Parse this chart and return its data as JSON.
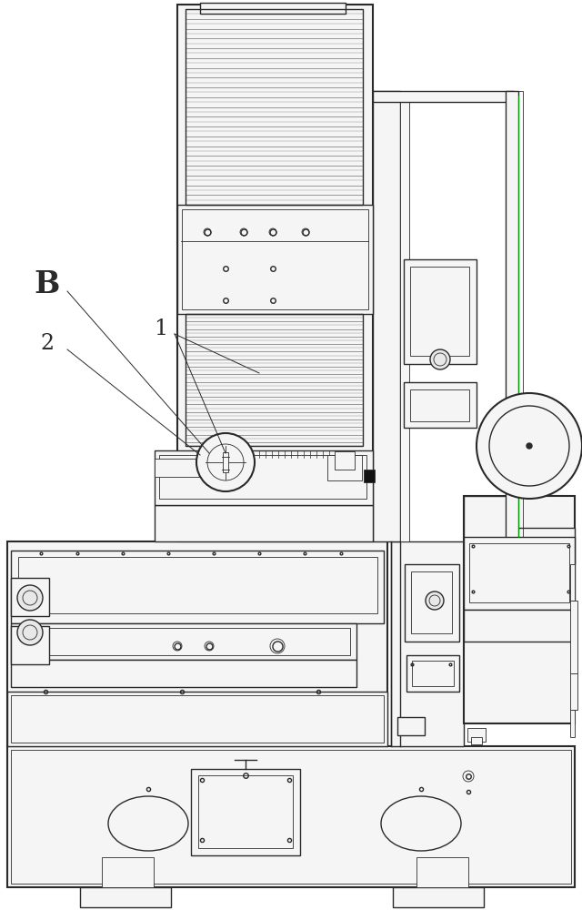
{
  "bg_color": "#ffffff",
  "lc": "#2a2a2a",
  "lc2": "#444444",
  "fill_light": "#f5f5f5",
  "fill_mid": "#e8e8e8",
  "fill_dark": "#d0d0d0",
  "green_line": "#00aa00",
  "lw_thin": 0.6,
  "lw_med": 1.0,
  "lw_thick": 1.5,
  "lw_xthick": 2.0
}
